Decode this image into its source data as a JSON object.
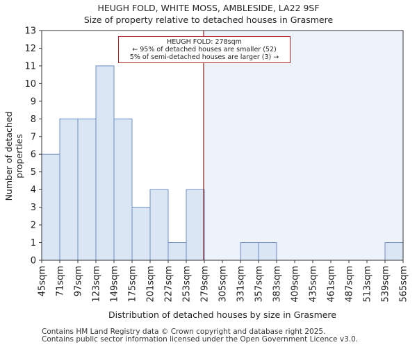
{
  "header": {
    "title": "HEUGH FOLD, WHITE MOSS, AMBLESIDE, LA22 9SF",
    "subtitle": "Size of property relative to detached houses in Grasmere"
  },
  "annotation": {
    "line1": "HEUGH FOLD: 278sqm",
    "line2": "← 95% of detached houses are smaller (52)",
    "line3": "5% of semi-detached houses are larger (3) →"
  },
  "footer": {
    "line1": "Contains HM Land Registry data © Crown copyright and database right 2025.",
    "line2": "Contains public sector information licensed under the Open Government Licence v3.0."
  },
  "chart_data": {
    "type": "bar",
    "xlabel": "Distribution of detached houses by size in Grasmere",
    "ylabel": "Number of detached properties",
    "bin_edges": [
      "45sqm",
      "71sqm",
      "97sqm",
      "123sqm",
      "149sqm",
      "175sqm",
      "201sqm",
      "227sqm",
      "253sqm",
      "279sqm",
      "305sqm",
      "331sqm",
      "357sqm",
      "383sqm",
      "409sqm",
      "435sqm",
      "461sqm",
      "487sqm",
      "513sqm",
      "539sqm",
      "565sqm"
    ],
    "values": [
      6,
      8,
      8,
      11,
      8,
      3,
      4,
      1,
      4,
      0,
      0,
      1,
      1,
      0,
      0,
      0,
      0,
      0,
      0,
      1
    ],
    "ylim": [
      0,
      13
    ],
    "yticks": [
      0,
      1,
      2,
      3,
      4,
      5,
      6,
      7,
      8,
      9,
      10,
      11,
      12,
      13
    ],
    "marker_value": 278,
    "x_start": 45,
    "bin_width": 26,
    "grid": false,
    "colors": {
      "bar_fill": "#dbe6f4",
      "bar_stroke": "#6d8fc4",
      "highlight_fill": "#eef2fb",
      "marker": "#8b1a1a"
    }
  }
}
